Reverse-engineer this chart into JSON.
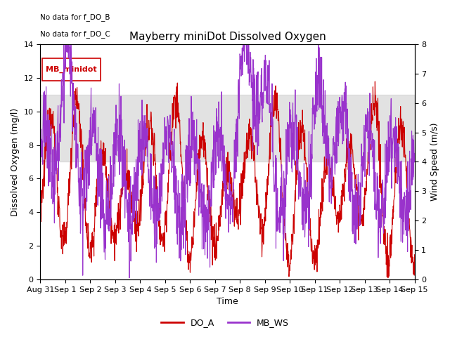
{
  "title": "Mayberry miniDot Dissolved Oxygen",
  "xlabel": "Time",
  "ylabel_left": "Dissolved Oxygen (mg/l)",
  "ylabel_right": "Wind Speed (m/s)",
  "text_no_data": [
    "No data for f_DO_B",
    "No data for f_DO_C"
  ],
  "legend_box_label": "MB_minidot",
  "legend_entries": [
    "DO_A",
    "MB_WS"
  ],
  "legend_colors": [
    "#cc0000",
    "#9933cc"
  ],
  "ylim_left": [
    0,
    14
  ],
  "ylim_right": [
    0.0,
    8.0
  ],
  "yticks_left": [
    0,
    2,
    4,
    6,
    8,
    10,
    12,
    14
  ],
  "yticks_right": [
    0.0,
    1.0,
    2.0,
    3.0,
    4.0,
    5.0,
    6.0,
    7.0,
    8.0
  ],
  "gray_band": [
    7,
    11
  ],
  "xtick_labels": [
    "Aug 31",
    "Sep 1",
    "Sep 2",
    "Sep 3",
    "Sep 4",
    "Sep 5",
    "Sep 6",
    "Sep 7",
    "Sep 8",
    "Sep 9",
    "Sep 10",
    "Sep 11",
    "Sep 12",
    "Sep 13",
    "Sep 14",
    "Sep 15"
  ],
  "do_color": "#cc0000",
  "ws_color": "#9933cc",
  "background_color": "#ffffff",
  "title_fontsize": 11,
  "axis_label_fontsize": 9,
  "tick_fontsize": 8,
  "figsize": [
    6.4,
    4.8
  ],
  "dpi": 100
}
